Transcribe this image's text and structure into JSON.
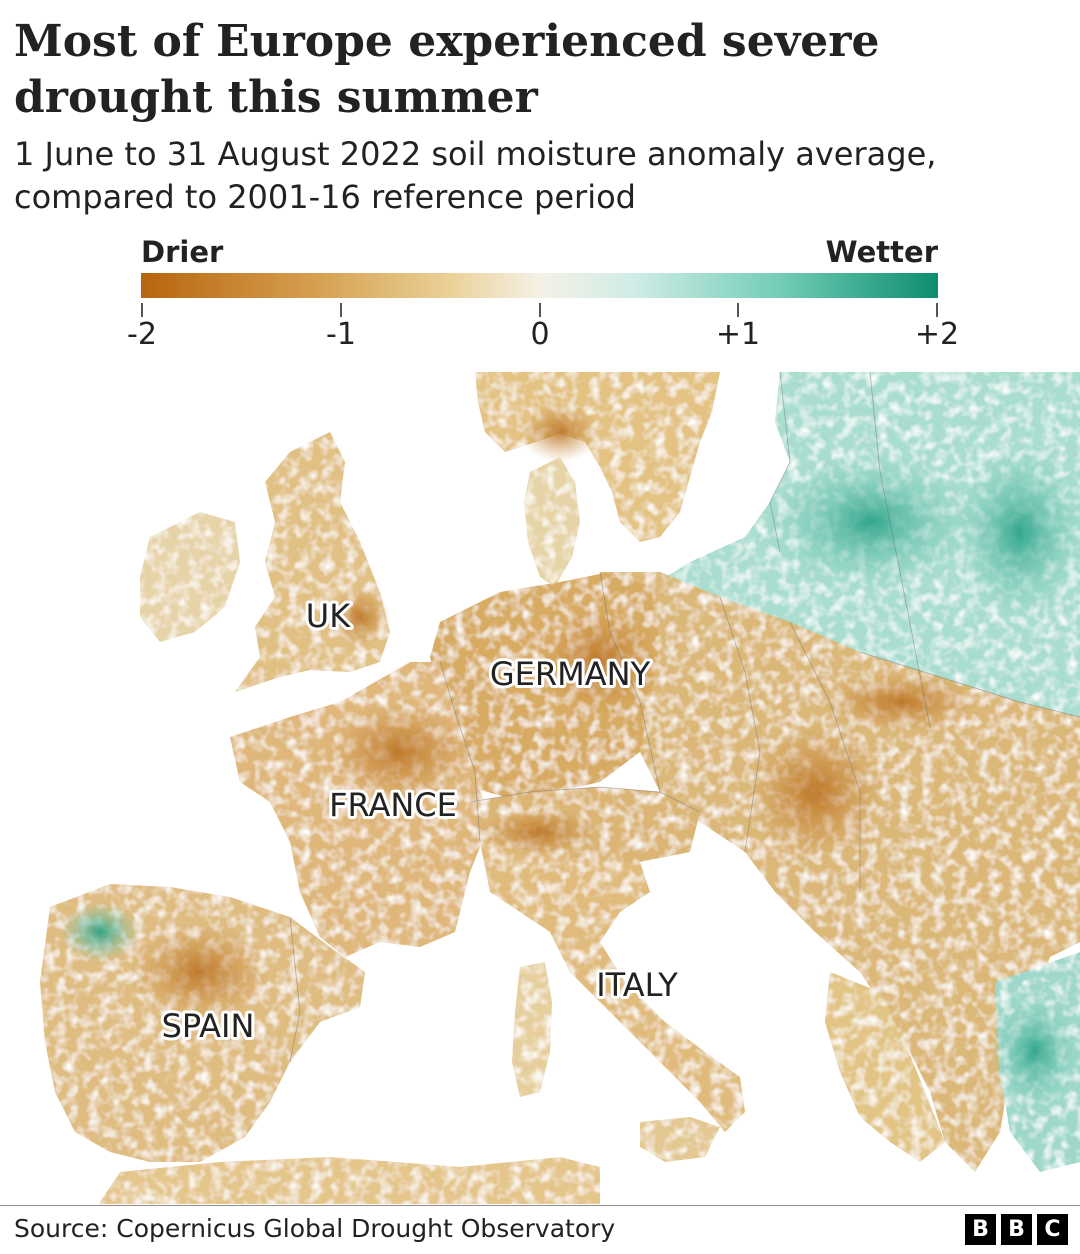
{
  "header": {
    "title": "Most of Europe experienced severe drought this summer",
    "subtitle": "1 June to 31 August 2022 soil moisture anomaly average, compared to 2001-16 reference period"
  },
  "legend": {
    "low_label": "Drier",
    "high_label": "Wetter",
    "ticks": [
      "-2",
      "-1",
      "0",
      "+1",
      "+2"
    ],
    "colors": {
      "very_dry": "#b7650d",
      "dry": "#d6a051",
      "slightly_dry": "#e9cf93",
      "neutral": "#f5f1e6",
      "slightly_wet": "#cfece6",
      "wet": "#73cdb8",
      "very_wet": "#0c8d6f"
    }
  },
  "map": {
    "labels": {
      "uk": "UK",
      "germany": "GERMANY",
      "france": "FRANCE",
      "italy": "ITALY",
      "spain": "SPAIN"
    }
  },
  "footer": {
    "source": "Source: Copernicus Global Drought Observatory",
    "logo": [
      "B",
      "B",
      "C"
    ]
  }
}
